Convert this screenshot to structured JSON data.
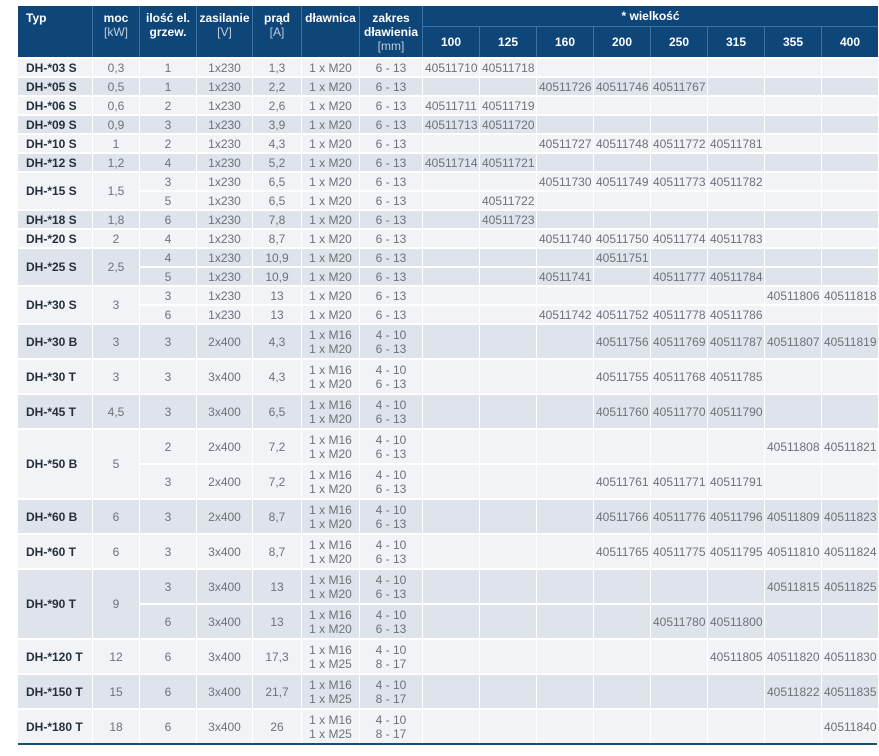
{
  "table": {
    "wielkosc_header": "* wielkość",
    "columns": [
      {
        "label": "Typ",
        "label2": "",
        "sub": ""
      },
      {
        "label": "moc",
        "label2": "",
        "sub": "[kW]"
      },
      {
        "label": "ilość el.",
        "label2": "grzew.",
        "sub": ""
      },
      {
        "label": "zasilanie",
        "label2": "",
        "sub": "[V]"
      },
      {
        "label": "prąd",
        "label2": "",
        "sub": "[A]"
      },
      {
        "label": "dławnica",
        "label2": "",
        "sub": ""
      },
      {
        "label": "zakres",
        "label2": "dławienia",
        "sub": "[mm]"
      }
    ],
    "sizes": [
      "100",
      "125",
      "160",
      "200",
      "250",
      "315",
      "355",
      "400"
    ],
    "groups": [
      {
        "typ": "DH-*03 S",
        "moc": "0,3",
        "shade": "light",
        "rows": [
          {
            "ilosc": "1",
            "zasilanie": "1x230",
            "prad": "1,3",
            "dlawnica": [
              "1 x M20"
            ],
            "zakres": [
              "6 - 13"
            ],
            "codes": {
              "100": "40511710",
              "125": "40511718"
            }
          }
        ]
      },
      {
        "typ": "DH-*05 S",
        "moc": "0,5",
        "shade": "dark",
        "rows": [
          {
            "ilosc": "1",
            "zasilanie": "1x230",
            "prad": "2,2",
            "dlawnica": [
              "1 x M20"
            ],
            "zakres": [
              "6 - 13"
            ],
            "codes": {
              "160": "40511726",
              "200": "40511746",
              "250": "40511767"
            }
          }
        ]
      },
      {
        "typ": "DH-*06 S",
        "moc": "0,6",
        "shade": "light",
        "rows": [
          {
            "ilosc": "2",
            "zasilanie": "1x230",
            "prad": "2,6",
            "dlawnica": [
              "1 x M20"
            ],
            "zakres": [
              "6 - 13"
            ],
            "codes": {
              "100": "40511711",
              "125": "40511719"
            }
          }
        ]
      },
      {
        "typ": "DH-*09 S",
        "moc": "0,9",
        "shade": "dark",
        "rows": [
          {
            "ilosc": "3",
            "zasilanie": "1x230",
            "prad": "3,9",
            "dlawnica": [
              "1 x M20"
            ],
            "zakres": [
              "6 - 13"
            ],
            "codes": {
              "100": "40511713",
              "125": "40511720"
            }
          }
        ]
      },
      {
        "typ": "DH-*10 S",
        "moc": "1",
        "shade": "light",
        "rows": [
          {
            "ilosc": "2",
            "zasilanie": "1x230",
            "prad": "4,3",
            "dlawnica": [
              "1 x M20"
            ],
            "zakres": [
              "6 - 13"
            ],
            "codes": {
              "160": "40511727",
              "200": "40511748",
              "250": "40511772",
              "315": "40511781"
            }
          }
        ]
      },
      {
        "typ": "DH-*12 S",
        "moc": "1,2",
        "shade": "dark",
        "rows": [
          {
            "ilosc": "4",
            "zasilanie": "1x230",
            "prad": "5,2",
            "dlawnica": [
              "1 x M20"
            ],
            "zakres": [
              "6 - 13"
            ],
            "codes": {
              "100": "40511714",
              "125": "40511721"
            }
          }
        ]
      },
      {
        "typ": "DH-*15 S",
        "moc": "1,5",
        "shade": "light",
        "rows": [
          {
            "ilosc": "3",
            "zasilanie": "1x230",
            "prad": "6,5",
            "dlawnica": [
              "1 x M20"
            ],
            "zakres": [
              "6 - 13"
            ],
            "codes": {
              "160": "40511730",
              "200": "40511749",
              "250": "40511773",
              "315": "40511782"
            }
          },
          {
            "ilosc": "5",
            "zasilanie": "1x230",
            "prad": "6,5",
            "dlawnica": [
              "1 x M20"
            ],
            "zakres": [
              "6 - 13"
            ],
            "codes": {
              "125": "40511722"
            }
          }
        ]
      },
      {
        "typ": "DH-*18 S",
        "moc": "1,8",
        "shade": "dark",
        "rows": [
          {
            "ilosc": "6",
            "zasilanie": "1x230",
            "prad": "7,8",
            "dlawnica": [
              "1 x M20"
            ],
            "zakres": [
              "6 - 13"
            ],
            "codes": {
              "125": "40511723"
            }
          }
        ]
      },
      {
        "typ": "DH-*20 S",
        "moc": "2",
        "shade": "light",
        "rows": [
          {
            "ilosc": "4",
            "zasilanie": "1x230",
            "prad": "8,7",
            "dlawnica": [
              "1 x M20"
            ],
            "zakres": [
              "6 - 13"
            ],
            "codes": {
              "160": "40511740",
              "200": "40511750",
              "250": "40511774",
              "315": "40511783"
            }
          }
        ]
      },
      {
        "typ": "DH-*25 S",
        "moc": "2,5",
        "shade": "dark",
        "rows": [
          {
            "ilosc": "4",
            "zasilanie": "1x230",
            "prad": "10,9",
            "dlawnica": [
              "1 x M20"
            ],
            "zakres": [
              "6 - 13"
            ],
            "codes": {
              "200": "40511751"
            }
          },
          {
            "ilosc": "5",
            "zasilanie": "1x230",
            "prad": "10,9",
            "dlawnica": [
              "1 x M20"
            ],
            "zakres": [
              "6 - 13"
            ],
            "codes": {
              "160": "40511741",
              "250": "40511777",
              "315": "40511784"
            }
          }
        ]
      },
      {
        "typ": "DH-*30 S",
        "moc": "3",
        "shade": "light",
        "rows": [
          {
            "ilosc": "3",
            "zasilanie": "1x230",
            "prad": "13",
            "dlawnica": [
              "1 x M20"
            ],
            "zakres": [
              "6 - 13"
            ],
            "codes": {
              "355": "40511806",
              "400": "40511818"
            }
          },
          {
            "ilosc": "6",
            "zasilanie": "1x230",
            "prad": "13",
            "dlawnica": [
              "1 x M20"
            ],
            "zakres": [
              "6 - 13"
            ],
            "codes": {
              "160": "40511742",
              "200": "40511752",
              "250": "40511778",
              "315": "40511786"
            }
          }
        ]
      },
      {
        "typ": "DH-*30 B",
        "moc": "3",
        "shade": "dark",
        "rows": [
          {
            "ilosc": "3",
            "zasilanie": "2x400",
            "prad": "4,3",
            "dlawnica": [
              "1 x M16",
              "1 x M20"
            ],
            "zakres": [
              "4 - 10",
              "6 - 13"
            ],
            "codes": {
              "200": "40511756",
              "250": "40511769",
              "315": "40511787",
              "355": "40511807",
              "400": "40511819"
            }
          }
        ]
      },
      {
        "typ": "DH-*30 T",
        "moc": "3",
        "shade": "light",
        "rows": [
          {
            "ilosc": "3",
            "zasilanie": "3x400",
            "prad": "4,3",
            "dlawnica": [
              "1 x M16",
              "1 x M20"
            ],
            "zakres": [
              "4 - 10",
              "6 - 13"
            ],
            "codes": {
              "200": "40511755",
              "250": "40511768",
              "315": "40511785"
            }
          }
        ]
      },
      {
        "typ": "DH-*45 T",
        "moc": "4,5",
        "shade": "dark",
        "rows": [
          {
            "ilosc": "3",
            "zasilanie": "3x400",
            "prad": "6,5",
            "dlawnica": [
              "1 x M16",
              "1 x M20"
            ],
            "zakres": [
              "4 - 10",
              "6 - 13"
            ],
            "codes": {
              "200": "40511760",
              "250": "40511770",
              "315": "40511790"
            }
          }
        ]
      },
      {
        "typ": "DH-*50 B",
        "moc": "5",
        "shade": "light",
        "rows": [
          {
            "ilosc": "2",
            "zasilanie": "2x400",
            "prad": "7,2",
            "dlawnica": [
              "1 x M16",
              "1 x M20"
            ],
            "zakres": [
              "4 - 10",
              "6 - 13"
            ],
            "codes": {
              "355": "40511808",
              "400": "40511821"
            }
          },
          {
            "ilosc": "3",
            "zasilanie": "2x400",
            "prad": "7,2",
            "dlawnica": [
              "1 x M16",
              "1 x M20"
            ],
            "zakres": [
              "4 - 10",
              "6 - 13"
            ],
            "codes": {
              "200": "40511761",
              "250": "40511771",
              "315": "40511791"
            }
          }
        ]
      },
      {
        "typ": "DH-*60 B",
        "moc": "6",
        "shade": "dark",
        "rows": [
          {
            "ilosc": "3",
            "zasilanie": "2x400",
            "prad": "8,7",
            "dlawnica": [
              "1 x M16",
              "1 x M20"
            ],
            "zakres": [
              "4 - 10",
              "6 - 13"
            ],
            "codes": {
              "200": "40511766",
              "250": "40511776",
              "315": "40511796",
              "355": "40511809",
              "400": "40511823"
            }
          }
        ]
      },
      {
        "typ": "DH-*60 T",
        "moc": "6",
        "shade": "light",
        "rows": [
          {
            "ilosc": "3",
            "zasilanie": "3x400",
            "prad": "8,7",
            "dlawnica": [
              "1 x M16",
              "1 x M20"
            ],
            "zakres": [
              "4 - 10",
              "6 - 13"
            ],
            "codes": {
              "200": "40511765",
              "250": "40511775",
              "315": "40511795",
              "355": "40511810",
              "400": "40511824"
            }
          }
        ]
      },
      {
        "typ": "DH-*90 T",
        "moc": "9",
        "shade": "dark",
        "rows": [
          {
            "ilosc": "3",
            "zasilanie": "3x400",
            "prad": "13",
            "dlawnica": [
              "1 x M16",
              "1 x M20"
            ],
            "zakres": [
              "4 - 10",
              "6 - 13"
            ],
            "codes": {
              "355": "40511815",
              "400": "40511825"
            }
          },
          {
            "ilosc": "6",
            "zasilanie": "3x400",
            "prad": "13",
            "dlawnica": [
              "1 x M16",
              "1 x M20"
            ],
            "zakres": [
              "4 - 10",
              "6 - 13"
            ],
            "codes": {
              "250": "40511780",
              "315": "40511800"
            }
          }
        ]
      },
      {
        "typ": "DH-*120 T",
        "moc": "12",
        "shade": "light",
        "rows": [
          {
            "ilosc": "6",
            "zasilanie": "3x400",
            "prad": "17,3",
            "dlawnica": [
              "1 x M16",
              "1 x M25"
            ],
            "zakres": [
              "4 - 10",
              "8 - 17"
            ],
            "codes": {
              "315": "40511805",
              "355": "40511820",
              "400": "40511830"
            }
          }
        ]
      },
      {
        "typ": "DH-*150 T",
        "moc": "15",
        "shade": "dark",
        "rows": [
          {
            "ilosc": "6",
            "zasilanie": "3x400",
            "prad": "21,7",
            "dlawnica": [
              "1 x M16",
              "1 x M25"
            ],
            "zakres": [
              "4 - 10",
              "8 - 17"
            ],
            "codes": {
              "355": "40511822",
              "400": "40511835"
            }
          }
        ]
      },
      {
        "typ": "DH-*180 T",
        "moc": "18",
        "shade": "light",
        "rows": [
          {
            "ilosc": "6",
            "zasilanie": "3x400",
            "prad": "26",
            "dlawnica": [
              "1 x M16",
              "1 x M25"
            ],
            "zakres": [
              "4 - 10",
              "8 - 17"
            ],
            "codes": {
              "400": "40511840"
            }
          }
        ]
      }
    ]
  },
  "colors": {
    "header_bg": "#0f4679",
    "header_divider": "#3c73a5",
    "row_light": "#f1f3f7",
    "row_dark": "#dee3ec",
    "type_text": "#25303b",
    "value_text": "#6e7278",
    "bottom_border": "#174e7d"
  }
}
